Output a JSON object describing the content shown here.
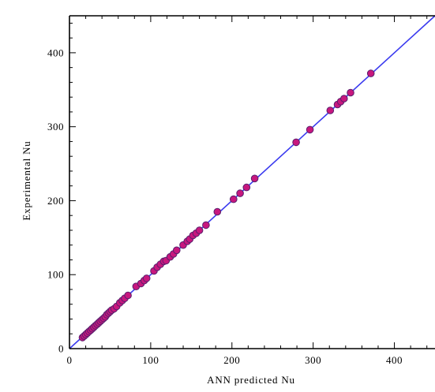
{
  "chart_data": {
    "type": "scatter",
    "title": "",
    "xlabel": "ANN predicted Nu",
    "ylabel": "Experimental Nu",
    "xlim": [
      0,
      450
    ],
    "ylim": [
      0,
      450
    ],
    "xticks": [
      0,
      100,
      200,
      300,
      400
    ],
    "yticks": [
      0,
      100,
      200,
      300,
      400
    ],
    "grid": false,
    "legend": "none",
    "colors": {
      "point_fill": "#c8177e",
      "point_edge": "#5a1f6e",
      "fit_line": "#3a3aef",
      "axes": "#000000"
    },
    "fit_line": {
      "type": "y=x",
      "points": [
        [
          0,
          0
        ],
        [
          450,
          450
        ]
      ]
    },
    "series": [
      {
        "points": [
          [
            16,
            15
          ],
          [
            18,
            17
          ],
          [
            20,
            19
          ],
          [
            22,
            21
          ],
          [
            24,
            23
          ],
          [
            26,
            25
          ],
          [
            28,
            27
          ],
          [
            30,
            29
          ],
          [
            32,
            31
          ],
          [
            34,
            33
          ],
          [
            36,
            35
          ],
          [
            38,
            37
          ],
          [
            40,
            39
          ],
          [
            42,
            41
          ],
          [
            44,
            43
          ],
          [
            46,
            46
          ],
          [
            48,
            48
          ],
          [
            50,
            50
          ],
          [
            52,
            52
          ],
          [
            55,
            54
          ],
          [
            58,
            57
          ],
          [
            62,
            62
          ],
          [
            65,
            65
          ],
          [
            68,
            68
          ],
          [
            72,
            72
          ],
          [
            82,
            84
          ],
          [
            88,
            88
          ],
          [
            92,
            92
          ],
          [
            95,
            95
          ],
          [
            104,
            105
          ],
          [
            108,
            110
          ],
          [
            112,
            114
          ],
          [
            116,
            118
          ],
          [
            119,
            119
          ],
          [
            124,
            124
          ],
          [
            128,
            128
          ],
          [
            132,
            133
          ],
          [
            140,
            140
          ],
          [
            145,
            145
          ],
          [
            148,
            148
          ],
          [
            152,
            153
          ],
          [
            156,
            156
          ],
          [
            160,
            160
          ],
          [
            168,
            167
          ],
          [
            182,
            185
          ],
          [
            202,
            202
          ],
          [
            210,
            210
          ],
          [
            218,
            218
          ],
          [
            228,
            230
          ],
          [
            279,
            279
          ],
          [
            296,
            296
          ],
          [
            321,
            322
          ],
          [
            330,
            330
          ],
          [
            334,
            334
          ],
          [
            338,
            338
          ],
          [
            346,
            346
          ],
          [
            371,
            372
          ]
        ]
      }
    ]
  }
}
